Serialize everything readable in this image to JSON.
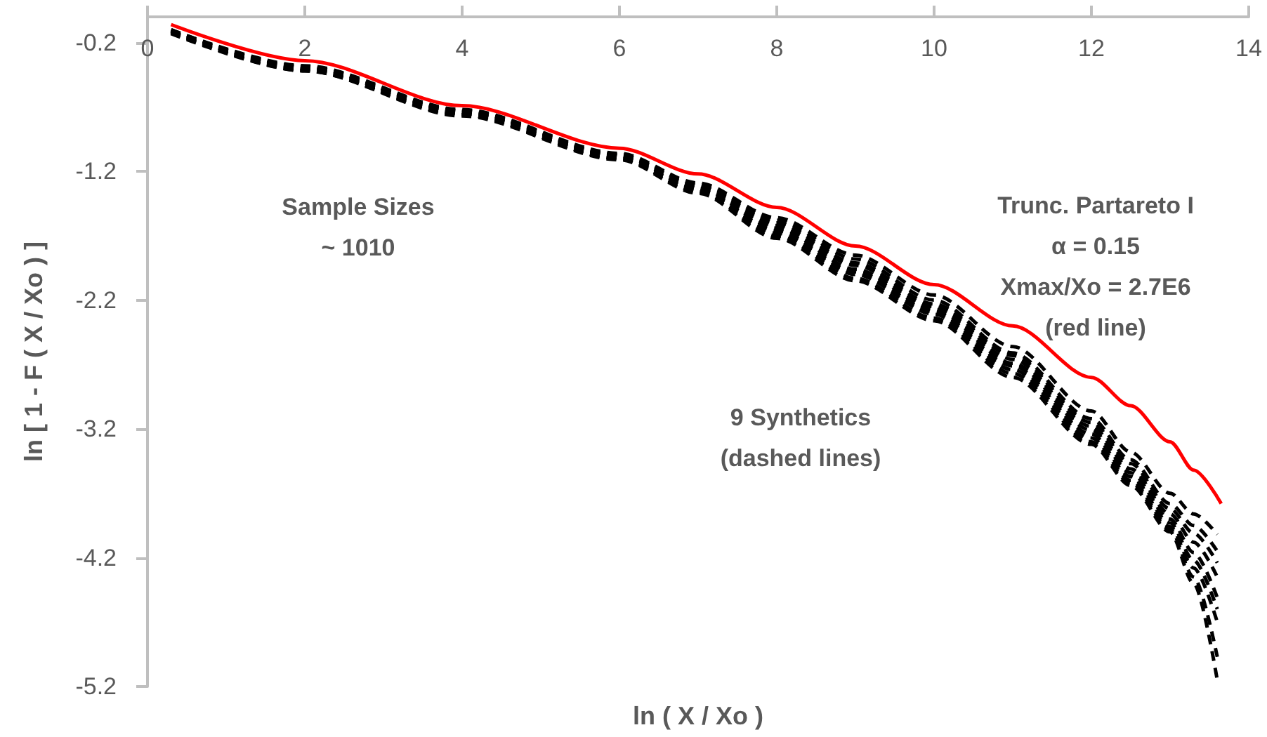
{
  "chart_data": {
    "type": "line",
    "xlabel": "ln ( X / Xo )",
    "ylabel": "ln [ 1 - F ( X / Xo ) ]",
    "xlim": [
      0,
      14
    ],
    "xticks": [
      0,
      2,
      4,
      6,
      8,
      10,
      12,
      14
    ],
    "ylim": [
      -5.2,
      0
    ],
    "yticks": [
      -0.2,
      -1.2,
      -2.2,
      -3.2,
      -4.2,
      -5.2
    ],
    "grid": false,
    "marker": "none",
    "annotations": [
      "Sample Sizes\n~ 1010",
      "Trunc. Partareto I\nα = 0.15\nXmax/Xo = 2.7E6\n(red line)",
      "9 Synthetics\n(dashed lines)"
    ],
    "series": [
      {
        "color": "#000000",
        "line_style": "dashed",
        "x": [
          0.3,
          2,
          4,
          6,
          7,
          8,
          9,
          10,
          11,
          12,
          12.5,
          13,
          13.3,
          13.6
        ],
        "values": [
          -0.1,
          -0.38,
          -0.72,
          -1.06,
          -1.29,
          -1.56,
          -1.85,
          -2.16,
          -2.56,
          -3.06,
          -3.38,
          -3.7,
          -3.86,
          -4.02
        ]
      },
      {
        "color": "#000000",
        "line_style": "dashed",
        "x": [
          0.3,
          2,
          4,
          6,
          7,
          8,
          9,
          10,
          11,
          12,
          12.5,
          13,
          13.3,
          13.6
        ],
        "values": [
          -0.1,
          -0.39,
          -0.73,
          -1.07,
          -1.3,
          -1.58,
          -1.88,
          -2.2,
          -2.61,
          -3.12,
          -3.44,
          -3.78,
          -3.95,
          -4.15
        ]
      },
      {
        "color": "#000000",
        "line_style": "dashed",
        "x": [
          0.3,
          2,
          4,
          6,
          7,
          8,
          9,
          10,
          11,
          12,
          12.5,
          13,
          13.3,
          13.6
        ],
        "values": [
          -0.11,
          -0.39,
          -0.73,
          -1.07,
          -1.31,
          -1.6,
          -1.91,
          -2.23,
          -2.63,
          -3.15,
          -3.47,
          -3.82,
          -4.01,
          -4.24
        ]
      },
      {
        "color": "#000000",
        "line_style": "dashed",
        "x": [
          0.3,
          2,
          4,
          6,
          7,
          8,
          9,
          10,
          11,
          12,
          12.5,
          13,
          13.3,
          13.6
        ],
        "values": [
          -0.11,
          -0.4,
          -0.74,
          -1.08,
          -1.32,
          -1.62,
          -1.93,
          -2.25,
          -2.66,
          -3.18,
          -3.51,
          -3.86,
          -4.08,
          -4.35
        ]
      },
      {
        "color": "#000000",
        "line_style": "dashed",
        "x": [
          0.3,
          2,
          4,
          6,
          7,
          8,
          9,
          10,
          11,
          12,
          12.5,
          13,
          13.3,
          13.6
        ],
        "values": [
          -0.11,
          -0.4,
          -0.74,
          -1.08,
          -1.33,
          -1.64,
          -1.96,
          -2.27,
          -2.69,
          -3.21,
          -3.54,
          -3.9,
          -4.16,
          -4.51
        ]
      },
      {
        "color": "#000000",
        "line_style": "dashed",
        "x": [
          0.3,
          2,
          4,
          6,
          7,
          8,
          9,
          10,
          11,
          12,
          12.5,
          13,
          13.3,
          13.6
        ],
        "values": [
          -0.12,
          -0.41,
          -0.75,
          -1.09,
          -1.34,
          -1.66,
          -1.98,
          -2.29,
          -2.71,
          -3.24,
          -3.57,
          -3.93,
          -4.22,
          -4.6
        ]
      },
      {
        "color": "#000000",
        "line_style": "dashed",
        "x": [
          0.3,
          2,
          4,
          6,
          7,
          8,
          9,
          10,
          11,
          12,
          12.5,
          13,
          13.3,
          13.6
        ],
        "values": [
          -0.12,
          -0.41,
          -0.76,
          -1.1,
          -1.35,
          -1.68,
          -2.0,
          -2.31,
          -2.74,
          -3.27,
          -3.6,
          -3.96,
          -4.28,
          -4.7
        ]
      },
      {
        "color": "#000000",
        "line_style": "dashed",
        "x": [
          0.3,
          2,
          4,
          6,
          7,
          8,
          9,
          10,
          11,
          12,
          12.5,
          13,
          13.3,
          13.6
        ],
        "values": [
          -0.12,
          -0.42,
          -0.76,
          -1.1,
          -1.36,
          -1.7,
          -2.03,
          -2.34,
          -2.77,
          -3.3,
          -3.62,
          -3.98,
          -4.35,
          -4.97
        ]
      },
      {
        "color": "#000000",
        "line_style": "dashed",
        "x": [
          0.3,
          2,
          4,
          6,
          7,
          8,
          9,
          10,
          11,
          12,
          12.5,
          13,
          13.3,
          13.6
        ],
        "values": [
          -0.13,
          -0.42,
          -0.77,
          -1.11,
          -1.37,
          -1.72,
          -2.05,
          -2.36,
          -2.8,
          -3.32,
          -3.64,
          -4.0,
          -4.4,
          -5.15
        ]
      },
      {
        "color": "#ff0000",
        "line_style": "solid",
        "x": [
          0.3,
          2,
          4,
          6,
          7,
          8,
          9,
          10,
          11,
          12,
          12.5,
          13,
          13.3,
          13.65
        ],
        "values": [
          -0.06,
          -0.34,
          -0.69,
          -1.02,
          -1.22,
          -1.48,
          -1.78,
          -2.08,
          -2.4,
          -2.8,
          -3.02,
          -3.3,
          -3.52,
          -3.78
        ]
      }
    ]
  }
}
